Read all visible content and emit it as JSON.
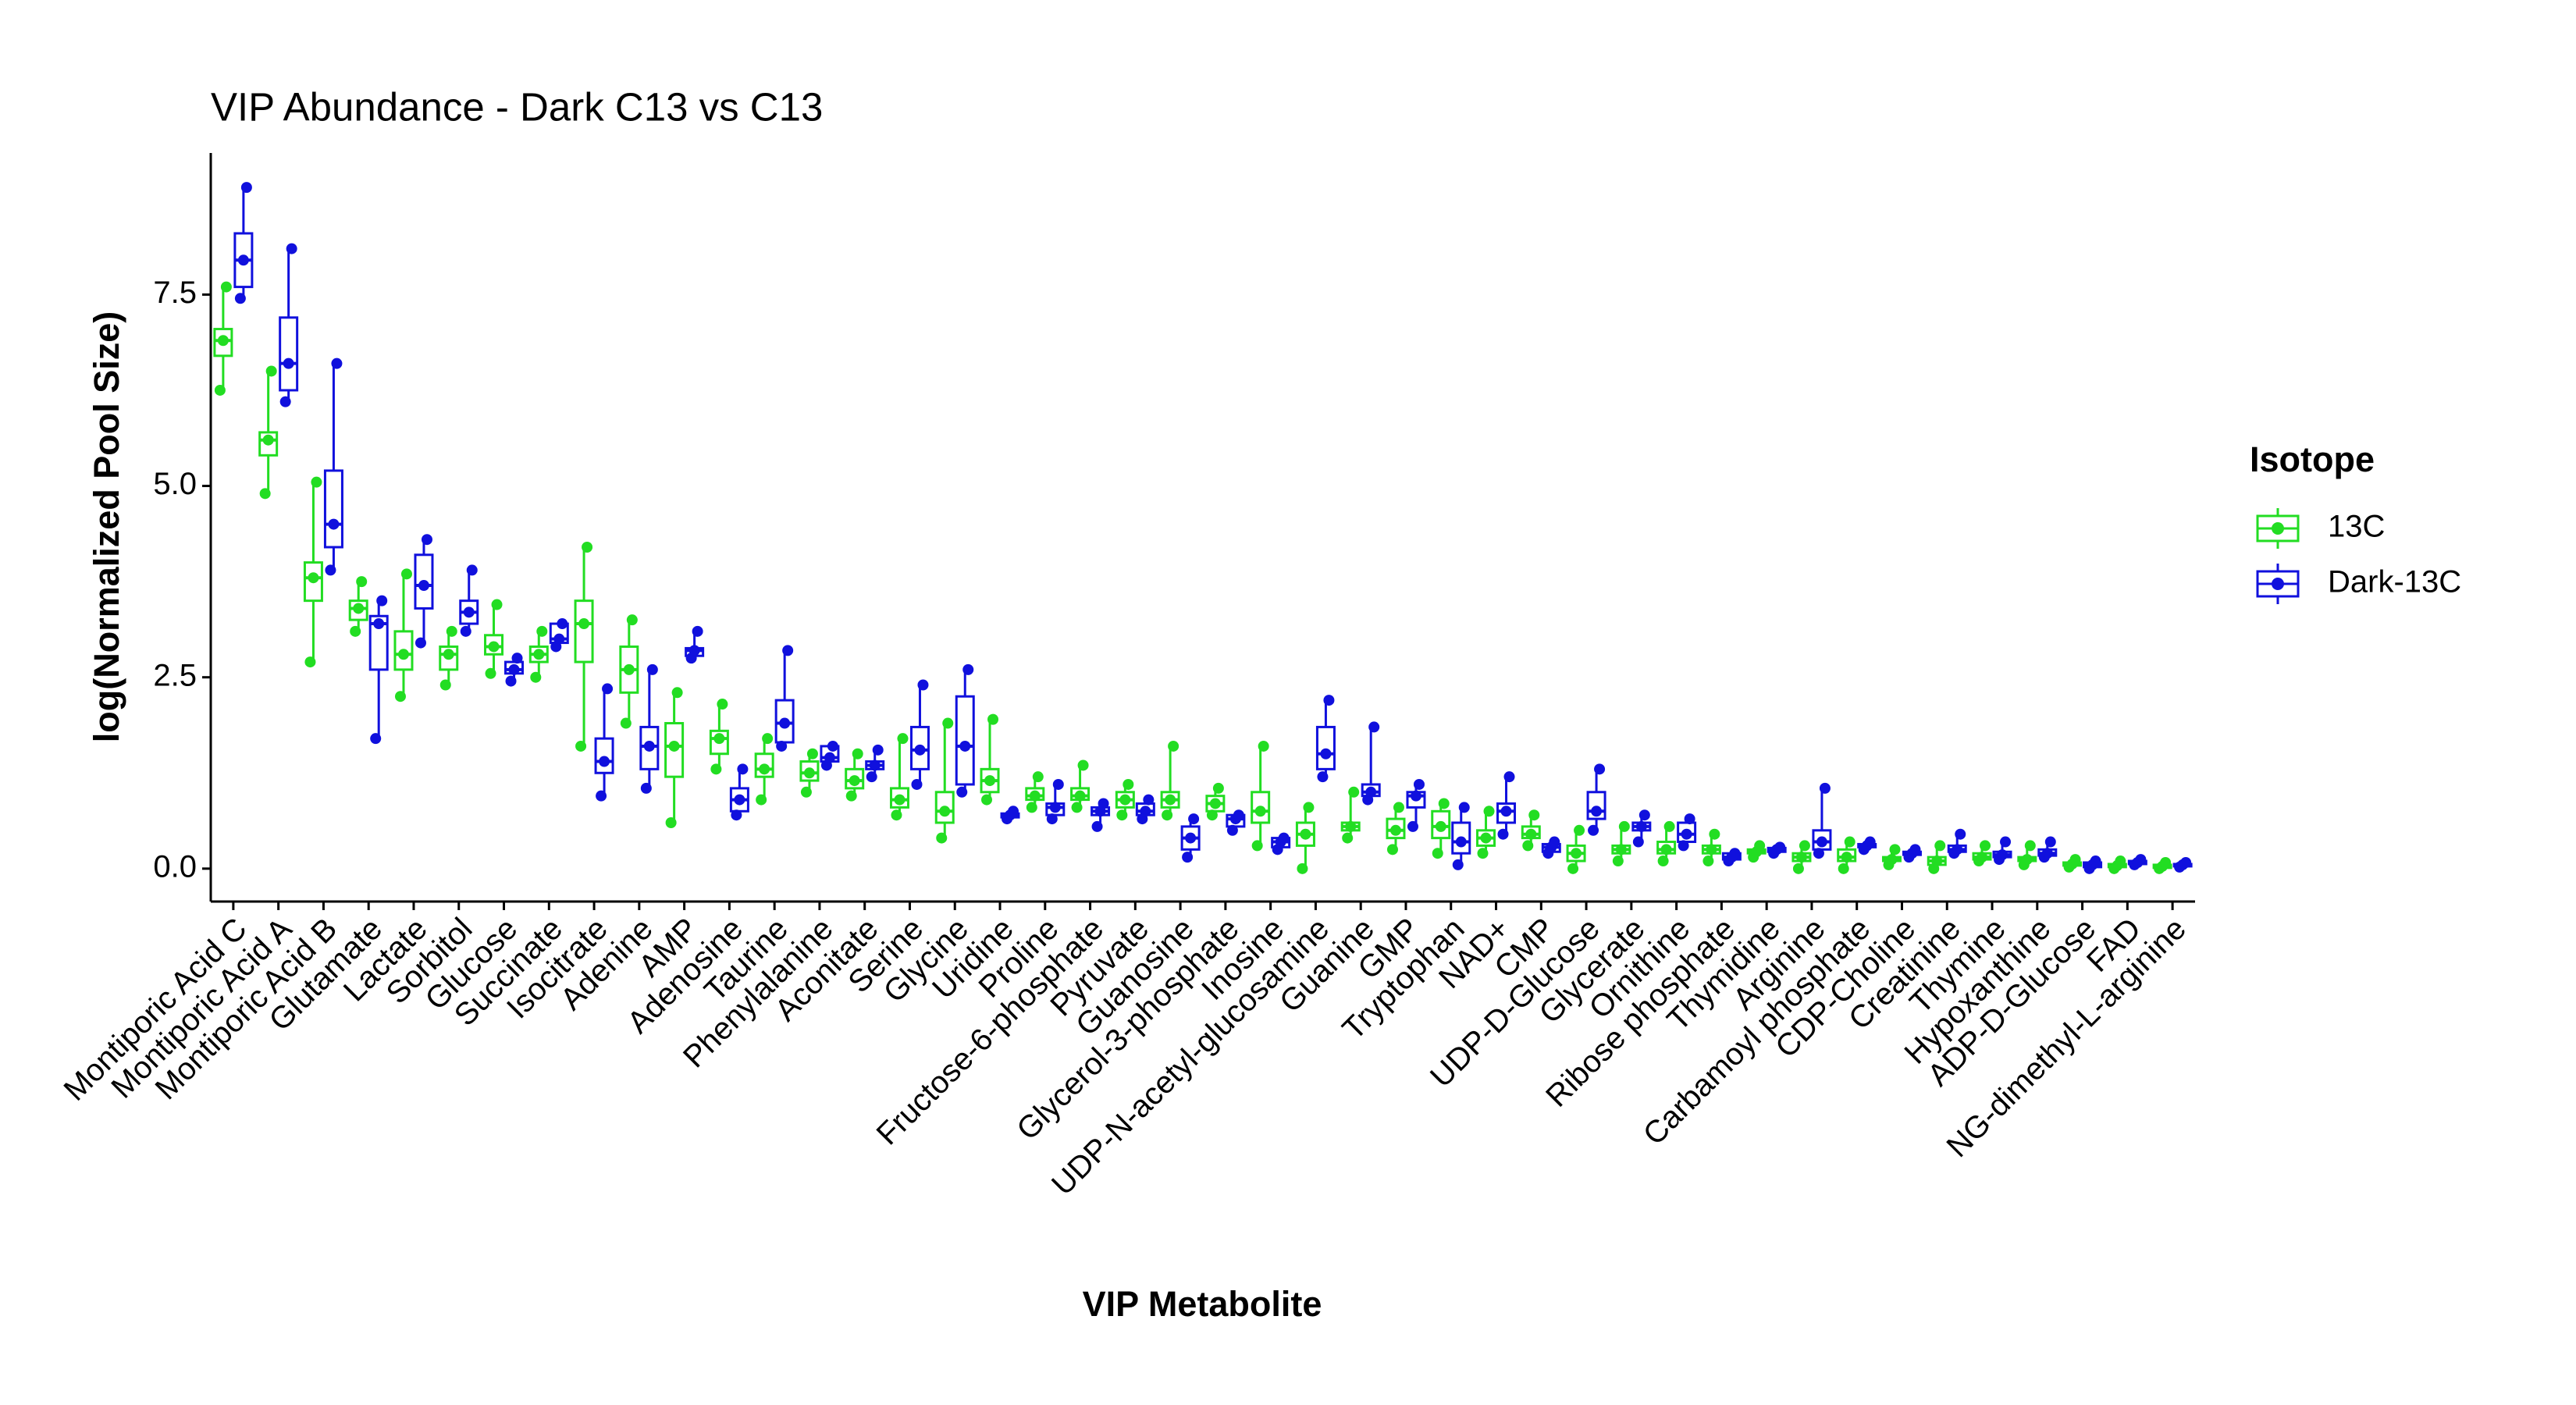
{
  "chart_data": {
    "type": "box",
    "title": "VIP Abundance - Dark C13 vs C13",
    "x_label": "VIP Metabolite",
    "y_label": "log(Normalized Pool Size)",
    "legend_title": "Isotope",
    "legend_position": "right",
    "categories": [
      "Montiporic Acid C",
      "Montiporic Acid A",
      "Montiporic Acid B",
      "Glutamate",
      "Lactate",
      "Sorbitol",
      "Glucose",
      "Succinate",
      "Isocitrate",
      "Adenine",
      "AMP",
      "Adenosine",
      "Taurine",
      "Phenylalanine",
      "Aconitate",
      "Serine",
      "Glycine",
      "Uridine",
      "Proline",
      "Fructose-6-phosphate",
      "Pyruvate",
      "Guanosine",
      "Glycerol-3-phosphate",
      "Inosine",
      "UDP-N-acetyl-glucosamine",
      "Guanine",
      "GMP",
      "Tryptophan",
      "NAD+",
      "CMP",
      "UDP-D-Glucose",
      "Glycerate",
      "Ornithine",
      "Ribose phosphate",
      "Thymidine",
      "Arginine",
      "Carbamoyl phosphate",
      "CDP-Choline",
      "Creatinine",
      "Thymine",
      "Hypoxanthine",
      "ADP-D-Glucose",
      "FAD",
      "NG-dimethyl-L-arginine"
    ],
    "ylim": [
      -0.43,
      9.35
    ],
    "yticks": [
      {
        "value": 0,
        "label": "0.0"
      },
      2.5,
      {
        "value": 5,
        "label": "5.0"
      },
      7.5
    ],
    "grid": false,
    "series": [
      {
        "name": "13C",
        "color": "#22dd22",
        "stats": [
          [
            6.25,
            6.7,
            6.9,
            7.05,
            7.6
          ],
          [
            4.9,
            5.4,
            5.6,
            5.7,
            6.5
          ],
          [
            2.7,
            3.5,
            3.8,
            4.0,
            5.05
          ],
          [
            3.1,
            3.25,
            3.4,
            3.5,
            3.75
          ],
          [
            2.25,
            2.6,
            2.8,
            3.1,
            3.85
          ],
          [
            2.4,
            2.6,
            2.8,
            2.9,
            3.1
          ],
          [
            2.55,
            2.8,
            2.9,
            3.05,
            3.45
          ],
          [
            2.5,
            2.7,
            2.8,
            2.9,
            3.1
          ],
          [
            1.6,
            2.7,
            3.2,
            3.5,
            4.2
          ],
          [
            1.9,
            2.3,
            2.6,
            2.9,
            3.25
          ],
          [
            0.6,
            1.2,
            1.6,
            1.9,
            2.3
          ],
          [
            1.3,
            1.5,
            1.7,
            1.8,
            2.15
          ],
          [
            0.9,
            1.2,
            1.3,
            1.5,
            1.7
          ],
          [
            1.0,
            1.15,
            1.25,
            1.4,
            1.5
          ],
          [
            0.95,
            1.05,
            1.15,
            1.3,
            1.5
          ],
          [
            0.7,
            0.8,
            0.9,
            1.05,
            1.7
          ],
          [
            0.4,
            0.6,
            0.75,
            1.0,
            1.9
          ],
          [
            0.9,
            1.0,
            1.15,
            1.3,
            1.95
          ],
          [
            0.8,
            0.9,
            0.95,
            1.05,
            1.2
          ],
          [
            0.8,
            0.9,
            0.95,
            1.05,
            1.35
          ],
          [
            0.7,
            0.8,
            0.9,
            1.0,
            1.1
          ],
          [
            0.7,
            0.8,
            0.9,
            1.0,
            1.6
          ],
          [
            0.7,
            0.75,
            0.85,
            0.95,
            1.05
          ],
          [
            0.3,
            0.6,
            0.75,
            1.0,
            1.6
          ],
          [
            0.0,
            0.3,
            0.45,
            0.6,
            0.8
          ],
          [
            0.4,
            0.5,
            0.55,
            0.6,
            1.0
          ],
          [
            0.25,
            0.4,
            0.5,
            0.65,
            0.8
          ],
          [
            0.2,
            0.4,
            0.55,
            0.75,
            0.85
          ],
          [
            0.2,
            0.3,
            0.4,
            0.5,
            0.75
          ],
          [
            0.3,
            0.4,
            0.45,
            0.55,
            0.7
          ],
          [
            0.0,
            0.1,
            0.2,
            0.3,
            0.5
          ],
          [
            0.1,
            0.2,
            0.25,
            0.3,
            0.55
          ],
          [
            0.1,
            0.2,
            0.25,
            0.35,
            0.55
          ],
          [
            0.1,
            0.2,
            0.25,
            0.3,
            0.45
          ],
          [
            0.15,
            0.2,
            0.22,
            0.25,
            0.3
          ],
          [
            0.0,
            0.1,
            0.15,
            0.2,
            0.3
          ],
          [
            0.0,
            0.1,
            0.15,
            0.25,
            0.35
          ],
          [
            0.05,
            0.1,
            0.12,
            0.15,
            0.25
          ],
          [
            0.0,
            0.05,
            0.1,
            0.15,
            0.3
          ],
          [
            0.1,
            0.12,
            0.15,
            0.2,
            0.3
          ],
          [
            0.05,
            0.1,
            0.12,
            0.15,
            0.3
          ],
          [
            0.02,
            0.04,
            0.06,
            0.08,
            0.12
          ],
          [
            0.0,
            0.02,
            0.04,
            0.06,
            0.1
          ],
          [
            0.0,
            0.01,
            0.03,
            0.05,
            0.08
          ]
        ]
      },
      {
        "name": "Dark-13C",
        "color": "#1010dd",
        "stats": [
          [
            7.45,
            7.6,
            7.95,
            8.3,
            8.9
          ],
          [
            6.1,
            6.25,
            6.6,
            7.2,
            8.1
          ],
          [
            3.9,
            4.2,
            4.5,
            5.2,
            6.6
          ],
          [
            1.7,
            2.6,
            3.2,
            3.3,
            3.5
          ],
          [
            2.95,
            3.4,
            3.7,
            4.1,
            4.3
          ],
          [
            3.1,
            3.2,
            3.35,
            3.5,
            3.9
          ],
          [
            2.45,
            2.55,
            2.6,
            2.7,
            2.75
          ],
          [
            2.9,
            2.95,
            3.0,
            3.2,
            3.2
          ],
          [
            0.95,
            1.25,
            1.4,
            1.7,
            2.35
          ],
          [
            1.05,
            1.3,
            1.6,
            1.85,
            2.6
          ],
          [
            2.75,
            2.78,
            2.85,
            2.88,
            3.1
          ],
          [
            0.7,
            0.75,
            0.9,
            1.05,
            1.3
          ],
          [
            1.6,
            1.65,
            1.9,
            2.2,
            2.85
          ],
          [
            1.35,
            1.4,
            1.45,
            1.6,
            1.6
          ],
          [
            1.2,
            1.3,
            1.35,
            1.4,
            1.55
          ],
          [
            1.1,
            1.3,
            1.55,
            1.85,
            2.4
          ],
          [
            1.0,
            1.1,
            1.6,
            2.25,
            2.6
          ],
          [
            0.65,
            0.67,
            0.7,
            0.72,
            0.75
          ],
          [
            0.65,
            0.7,
            0.8,
            0.85,
            1.1
          ],
          [
            0.55,
            0.7,
            0.75,
            0.8,
            0.85
          ],
          [
            0.65,
            0.7,
            0.75,
            0.85,
            0.9
          ],
          [
            0.15,
            0.25,
            0.4,
            0.55,
            0.65
          ],
          [
            0.5,
            0.55,
            0.65,
            0.7,
            0.7
          ],
          [
            0.25,
            0.28,
            0.35,
            0.4,
            0.4
          ],
          [
            1.2,
            1.3,
            1.5,
            1.85,
            2.2
          ],
          [
            0.9,
            0.95,
            1.0,
            1.1,
            1.85
          ],
          [
            0.55,
            0.8,
            0.95,
            1.0,
            1.1
          ],
          [
            0.05,
            0.2,
            0.35,
            0.6,
            0.8
          ],
          [
            0.45,
            0.6,
            0.75,
            0.85,
            1.2
          ],
          [
            0.2,
            0.22,
            0.28,
            0.32,
            0.35
          ],
          [
            0.5,
            0.65,
            0.75,
            1.0,
            1.3
          ],
          [
            0.35,
            0.5,
            0.55,
            0.6,
            0.7
          ],
          [
            0.3,
            0.35,
            0.45,
            0.6,
            0.65
          ],
          [
            0.1,
            0.12,
            0.15,
            0.2,
            0.2
          ],
          [
            0.2,
            0.22,
            0.25,
            0.27,
            0.28
          ],
          [
            0.2,
            0.25,
            0.35,
            0.5,
            1.05
          ],
          [
            0.25,
            0.28,
            0.3,
            0.32,
            0.35
          ],
          [
            0.15,
            0.18,
            0.2,
            0.22,
            0.25
          ],
          [
            0.2,
            0.22,
            0.25,
            0.3,
            0.45
          ],
          [
            0.12,
            0.15,
            0.18,
            0.22,
            0.35
          ],
          [
            0.15,
            0.17,
            0.2,
            0.25,
            0.35
          ],
          [
            0.0,
            0.02,
            0.05,
            0.08,
            0.1
          ],
          [
            0.05,
            0.06,
            0.08,
            0.1,
            0.12
          ],
          [
            0.02,
            0.03,
            0.05,
            0.06,
            0.08
          ]
        ]
      }
    ]
  }
}
